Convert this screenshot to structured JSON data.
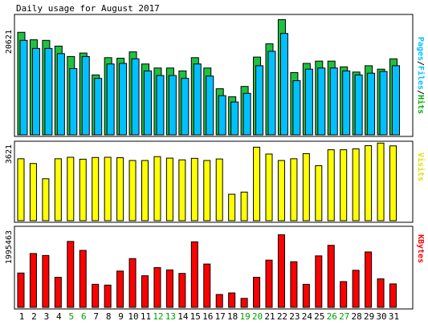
{
  "chart_data": [
    {
      "panel": "pages-files-hits",
      "type": "bar",
      "title": "Daily usage for August 2017",
      "ylabel": "20621",
      "right_label": [
        {
          "text": "Pages",
          "color": "#00c0ff"
        },
        {
          "text": "/",
          "color": "#000000"
        },
        {
          "text": "Files",
          "color": "#00c0ff"
        },
        {
          "text": "/",
          "color": "#000000"
        },
        {
          "text": "Hits",
          "color": "#00b000"
        }
      ],
      "categories": [
        "1",
        "2",
        "3",
        "4",
        "5",
        "6",
        "7",
        "8",
        "9",
        "10",
        "11",
        "12",
        "13",
        "14",
        "15",
        "16",
        "17",
        "18",
        "19",
        "20",
        "21",
        "22",
        "23",
        "24",
        "25",
        "26",
        "27",
        "28",
        "29",
        "30",
        "31"
      ],
      "weekend_days": [
        "5",
        "6",
        "12",
        "13",
        "19",
        "20",
        "26",
        "27"
      ],
      "ylim": [
        0,
        20621
      ],
      "series": [
        {
          "name": "Hits",
          "color": "#20c040",
          "values": [
            17800,
            16500,
            16400,
            15400,
            13600,
            14200,
            10400,
            13400,
            13300,
            14400,
            12300,
            11600,
            11600,
            11100,
            13400,
            11600,
            8000,
            6600,
            8400,
            13500,
            15800,
            20000,
            10800,
            12400,
            12800,
            12800,
            11800,
            10900,
            12000,
            11400,
            13200
          ]
        },
        {
          "name": "Files",
          "color": "#00c0ff",
          "values": [
            16400,
            15000,
            15000,
            14100,
            11500,
            13600,
            9800,
            12300,
            12400,
            13200,
            11100,
            10300,
            10300,
            9800,
            12300,
            10200,
            6800,
            5700,
            7200,
            12000,
            14500,
            17600,
            9400,
            11400,
            11600,
            11600,
            11100,
            10400,
            10700,
            11000,
            12000
          ]
        },
        {
          "name": "Pages",
          "color": "#0090d0",
          "values": [
            16400,
            15000,
            15000,
            14100,
            11500,
            13600,
            9800,
            12300,
            12400,
            13200,
            11100,
            10300,
            10300,
            9800,
            12300,
            10200,
            6800,
            5700,
            7200,
            12000,
            14500,
            17600,
            9400,
            11400,
            11600,
            11600,
            11100,
            10400,
            10700,
            11000,
            12000
          ]
        }
      ]
    },
    {
      "panel": "visits",
      "type": "bar",
      "ylabel": "3621",
      "right_label": [
        {
          "text": "Visits",
          "color": "#e0e000"
        }
      ],
      "ylim": [
        0,
        3621
      ],
      "series": [
        {
          "name": "Visits",
          "color": "#ffff00",
          "values": [
            2880,
            2660,
            1950,
            2880,
            2950,
            2860,
            2940,
            2950,
            2930,
            2800,
            2800,
            2980,
            2910,
            2830,
            2900,
            2800,
            2870,
            1230,
            1330,
            3420,
            3100,
            2800,
            2880,
            3120,
            2560,
            3300,
            3300,
            3340,
            3490,
            3610,
            3480
          ]
        }
      ]
    },
    {
      "panel": "kbytes",
      "type": "bar",
      "ylabel": "1995463",
      "right_label": [
        {
          "text": "KBytes",
          "color": "#ff0000"
        }
      ],
      "ylim": [
        0,
        1995463
      ],
      "series": [
        {
          "name": "KBytes",
          "color": "#ff0000",
          "values": [
            880000,
            1380000,
            1330000,
            770000,
            1690000,
            1460000,
            590000,
            570000,
            930000,
            1250000,
            810000,
            1020000,
            960000,
            870000,
            1680000,
            1110000,
            330000,
            370000,
            230000,
            770000,
            1210000,
            1860000,
            1170000,
            590000,
            1320000,
            1590000,
            660000,
            950000,
            1420000,
            730000,
            600000
          ]
        }
      ]
    }
  ]
}
